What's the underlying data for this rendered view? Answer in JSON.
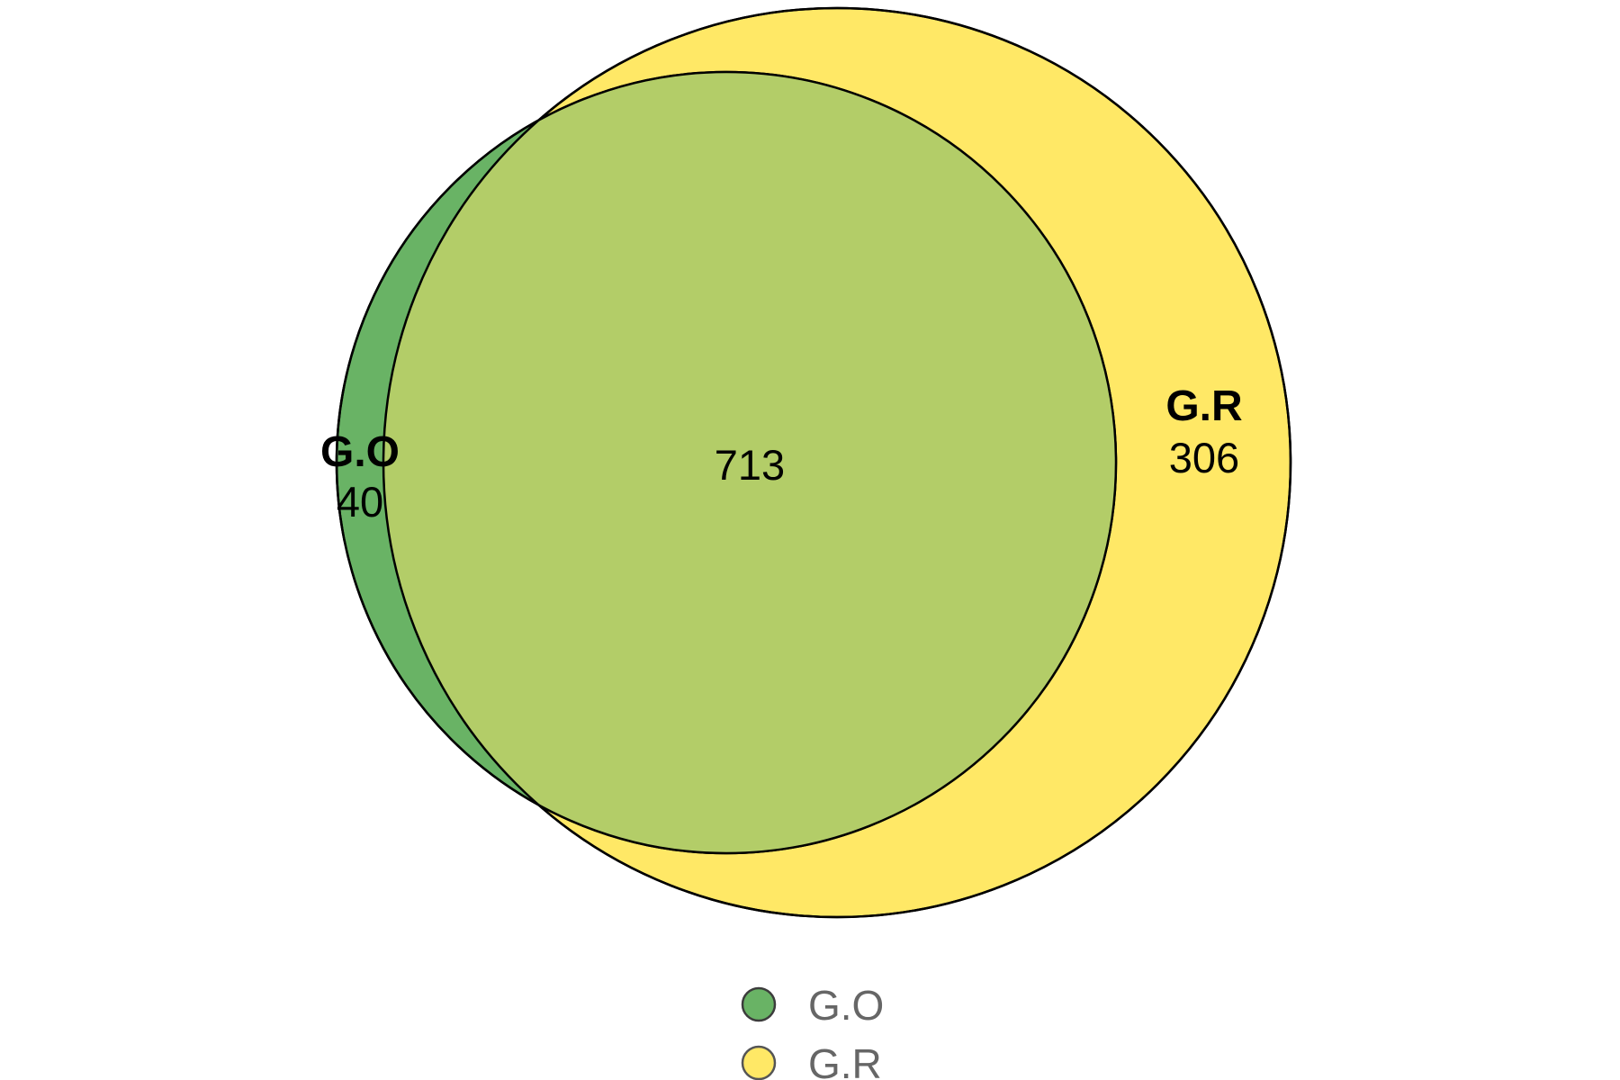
{
  "sets": [
    {
      "name": "G.O",
      "only_count": "40",
      "color": "#69b365"
    },
    {
      "name": "G.R",
      "only_count": "306",
      "color": "#ffe866"
    }
  ],
  "intersection": {
    "count": "713",
    "color": "#b3cd68"
  },
  "legend": [
    {
      "label": "G.O",
      "color": "#69b365"
    },
    {
      "label": "G.R",
      "color": "#ffe866"
    }
  ],
  "stroke_color": "#000000"
}
